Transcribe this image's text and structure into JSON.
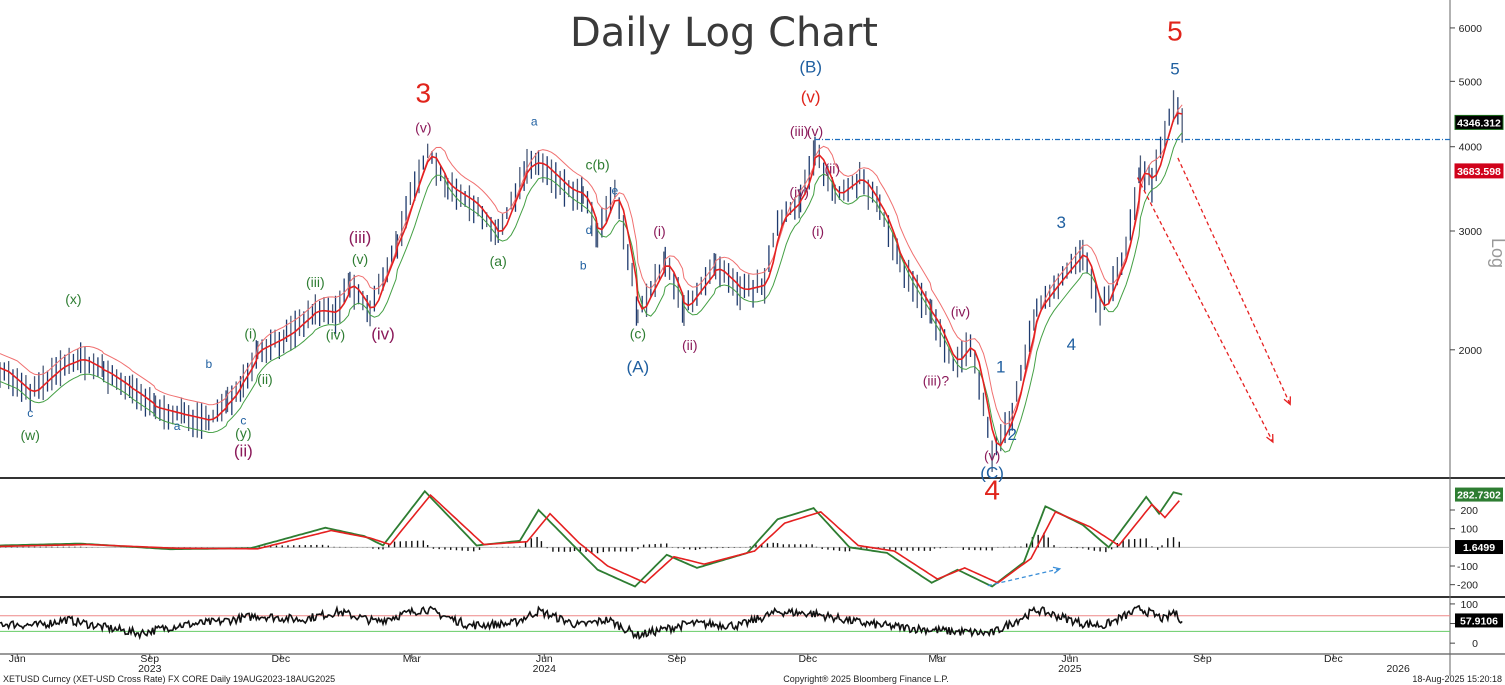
{
  "chart_data": {
    "type": "line",
    "title": "Daily Log Chart",
    "y_scale": "log",
    "y_axis_label": "Log",
    "ylim": [
      1300,
      6600
    ],
    "y_ticks": [
      "6000",
      "5000",
      "4000",
      "3000",
      "2000"
    ],
    "y_tick_values": [
      6000,
      5000,
      4000,
      3000,
      2000
    ],
    "x_axis": {
      "month_labels": [
        "Jun",
        "Sep",
        "Dec",
        "Mar",
        "Jun",
        "Sep",
        "Dec",
        "Mar",
        "Jun",
        "Sep",
        "Dec"
      ],
      "month_dates": [
        "2023-06-01",
        "2023-09-01",
        "2023-12-01",
        "2024-03-01",
        "2024-06-01",
        "2024-09-01",
        "2024-12-01",
        "2025-03-01",
        "2025-06-01",
        "2025-09-01",
        "2025-12-01"
      ],
      "year_labels": [
        "2023",
        "2024",
        "2025",
        "2026"
      ],
      "year_dates": [
        "2023-09-01",
        "2024-06-01",
        "2025-06-01",
        "2026-01-15"
      ],
      "range": [
        "2023-05-20",
        "2026-02-20"
      ]
    },
    "price_series": {
      "name": "XETUSD",
      "last_value": "4346.312",
      "points": [
        [
          "2023-05-20",
          1880
        ],
        [
          "2023-06-10",
          1720
        ],
        [
          "2023-07-01",
          1890
        ],
        [
          "2023-07-15",
          1940
        ],
        [
          "2023-07-31",
          1860
        ],
        [
          "2023-08-20",
          1740
        ],
        [
          "2023-09-05",
          1640
        ],
        [
          "2023-09-25",
          1600
        ],
        [
          "2023-10-12",
          1570
        ],
        [
          "2023-10-25",
          1670
        ],
        [
          "2023-11-05",
          1820
        ],
        [
          "2023-11-15",
          2000
        ],
        [
          "2023-12-05",
          2100
        ],
        [
          "2023-12-25",
          2290
        ],
        [
          "2024-01-08",
          2270
        ],
        [
          "2024-01-18",
          2510
        ],
        [
          "2024-02-01",
          2270
        ],
        [
          "2024-02-20",
          2900
        ],
        [
          "2024-03-12",
          3950
        ],
        [
          "2024-03-26",
          3490
        ],
        [
          "2024-04-13",
          3300
        ],
        [
          "2024-04-30",
          2950
        ],
        [
          "2024-05-20",
          3750
        ],
        [
          "2024-05-28",
          3800
        ],
        [
          "2024-06-18",
          3450
        ],
        [
          "2024-06-28",
          3400
        ],
        [
          "2024-07-08",
          2960
        ],
        [
          "2024-07-20",
          3450
        ],
        [
          "2024-08-05",
          2250
        ],
        [
          "2024-08-24",
          2700
        ],
        [
          "2024-09-06",
          2300
        ],
        [
          "2024-09-28",
          2650
        ],
        [
          "2024-10-15",
          2450
        ],
        [
          "2024-11-01",
          2500
        ],
        [
          "2024-11-10",
          3100
        ],
        [
          "2024-11-26",
          3350
        ],
        [
          "2024-12-06",
          3950
        ],
        [
          "2024-12-20",
          3380
        ],
        [
          "2025-01-06",
          3600
        ],
        [
          "2025-01-20",
          3250
        ],
        [
          "2025-02-03",
          2700
        ],
        [
          "2025-02-25",
          2250
        ],
        [
          "2025-03-12",
          1900
        ],
        [
          "2025-03-24",
          2050
        ],
        [
          "2025-04-08",
          1400
        ],
        [
          "2025-04-22",
          1600
        ],
        [
          "2025-05-09",
          2300
        ],
        [
          "2025-06-10",
          2800
        ],
        [
          "2025-06-22",
          2250
        ],
        [
          "2025-07-10",
          2800
        ],
        [
          "2025-07-20",
          3700
        ],
        [
          "2025-07-28",
          3550
        ],
        [
          "2025-08-12",
          4600
        ],
        [
          "2025-08-18",
          4346
        ]
      ]
    },
    "resistance_line": {
      "value": 4100,
      "from": "2024-12-06",
      "to": "2026-02-20",
      "color": "#1f6fbf"
    },
    "price_badges": [
      {
        "label": "4346.312",
        "value": 4346,
        "color": "#000000",
        "edge": "#1a6d1a"
      },
      {
        "label": "3683.598",
        "value": 3683,
        "color": "#d0021b",
        "edge": "#d0021b"
      }
    ],
    "projection_arrows": [
      {
        "from": [
          "2025-08-15",
          3850
        ],
        "to": [
          "2025-11-01",
          1660
        ]
      },
      {
        "from": [
          "2025-07-18",
          3600
        ],
        "to": [
          "2025-10-20",
          1460
        ]
      }
    ],
    "wave_labels": [
      {
        "text": "3",
        "date": "2024-03-09",
        "price": 4650,
        "color": "#e0241b",
        "size": "xl"
      },
      {
        "text": "(v)",
        "date": "2024-03-09",
        "price": 4200,
        "color": "#8b1a5a",
        "size": "m"
      },
      {
        "text": "(B)",
        "date": "2024-12-03",
        "price": 5150,
        "color": "#1f5fa0",
        "size": "l"
      },
      {
        "text": "(v)",
        "date": "2024-12-03",
        "price": 4650,
        "color": "#e0241b",
        "size": "l"
      },
      {
        "text": "(iii)",
        "date": "2024-11-25",
        "price": 4150,
        "color": "#8b1a5a",
        "size": "m"
      },
      {
        "text": "(v)",
        "date": "2024-12-06",
        "price": 4150,
        "color": "#8b1a5a",
        "size": "m"
      },
      {
        "text": "(ii)",
        "date": "2024-12-18",
        "price": 3650,
        "color": "#8b1a5a",
        "size": "m"
      },
      {
        "text": "(iv)",
        "date": "2024-11-25",
        "price": 3370,
        "color": "#8b1a5a",
        "size": "m"
      },
      {
        "text": "(i)",
        "date": "2024-12-08",
        "price": 2950,
        "color": "#8b1a5a",
        "size": "m"
      },
      {
        "text": "5",
        "date": "2025-08-13",
        "price": 5750,
        "color": "#e0241b",
        "size": "xl"
      },
      {
        "text": "5",
        "date": "2025-08-13",
        "price": 5120,
        "color": "#1f5fa0",
        "size": "l"
      },
      {
        "text": "a",
        "date": "2024-05-25",
        "price": 4300,
        "color": "#1f5fa0",
        "size": "s"
      },
      {
        "text": "c(b)",
        "date": "2024-07-08",
        "price": 3700,
        "color": "#2e7d32",
        "size": "m"
      },
      {
        "text": "e",
        "date": "2024-07-20",
        "price": 3400,
        "color": "#1f5fa0",
        "size": "s"
      },
      {
        "text": "d",
        "date": "2024-07-02",
        "price": 2970,
        "color": "#1f5fa0",
        "size": "s"
      },
      {
        "text": "b",
        "date": "2024-06-28",
        "price": 2630,
        "color": "#1f5fa0",
        "size": "s"
      },
      {
        "text": "(i)",
        "date": "2024-08-20",
        "price": 2950,
        "color": "#8b1a5a",
        "size": "m"
      },
      {
        "text": "(a)",
        "date": "2024-04-30",
        "price": 2660,
        "color": "#2e7d32",
        "size": "m"
      },
      {
        "text": "(c)",
        "date": "2024-08-05",
        "price": 2080,
        "color": "#2e7d32",
        "size": "m"
      },
      {
        "text": "(A)",
        "date": "2024-08-05",
        "price": 1850,
        "color": "#1f5fa0",
        "size": "l"
      },
      {
        "text": "(ii)",
        "date": "2024-09-10",
        "price": 2000,
        "color": "#8b1a5a",
        "size": "m"
      },
      {
        "text": "(iii)",
        "date": "2024-01-25",
        "price": 2880,
        "color": "#8b1a5a",
        "size": "l"
      },
      {
        "text": "(v)",
        "date": "2024-01-25",
        "price": 2680,
        "color": "#2e7d32",
        "size": "m"
      },
      {
        "text": "(iii)",
        "date": "2023-12-25",
        "price": 2480,
        "color": "#2e7d32",
        "size": "m"
      },
      {
        "text": "(iv)",
        "date": "2024-01-08",
        "price": 2070,
        "color": "#2e7d32",
        "size": "m"
      },
      {
        "text": "(iv)",
        "date": "2024-02-10",
        "price": 2070,
        "color": "#8b1a5a",
        "size": "l"
      },
      {
        "text": "(i)",
        "date": "2023-11-10",
        "price": 2080,
        "color": "#2e7d32",
        "size": "m"
      },
      {
        "text": "(ii)",
        "date": "2023-11-20",
        "price": 1780,
        "color": "#2e7d32",
        "size": "m"
      },
      {
        "text": "b",
        "date": "2023-10-12",
        "price": 1880,
        "color": "#1f5fa0",
        "size": "s"
      },
      {
        "text": "c",
        "date": "2023-11-05",
        "price": 1550,
        "color": "#1f5fa0",
        "size": "s"
      },
      {
        "text": "(y)",
        "date": "2023-11-05",
        "price": 1480,
        "color": "#2e7d32",
        "size": "m"
      },
      {
        "text": "(ii)",
        "date": "2023-11-05",
        "price": 1390,
        "color": "#8b1a5a",
        "size": "l"
      },
      {
        "text": "a",
        "date": "2023-09-20",
        "price": 1520,
        "color": "#1f5fa0",
        "size": "s"
      },
      {
        "text": "(x)",
        "date": "2023-07-10",
        "price": 2340,
        "color": "#2e7d32",
        "size": "m"
      },
      {
        "text": "c",
        "date": "2023-06-10",
        "price": 1590,
        "color": "#1f5fa0",
        "size": "s"
      },
      {
        "text": "(w)",
        "date": "2023-06-10",
        "price": 1470,
        "color": "#2e7d32",
        "size": "m"
      },
      {
        "text": "(iv)",
        "date": "2025-03-17",
        "price": 2240,
        "color": "#8b1a5a",
        "size": "m"
      },
      {
        "text": "(iii)?",
        "date": "2025-02-28",
        "price": 1770,
        "color": "#8b1a5a",
        "size": "m"
      },
      {
        "text": "1",
        "date": "2025-04-14",
        "price": 1850,
        "color": "#1f5fa0",
        "size": "l"
      },
      {
        "text": "2",
        "date": "2025-04-22",
        "price": 1470,
        "color": "#1f5fa0",
        "size": "l"
      },
      {
        "text": "(v)",
        "date": "2025-04-08",
        "price": 1370,
        "color": "#8b1a5a",
        "size": "m"
      },
      {
        "text": "(C)",
        "date": "2025-04-08",
        "price": 1290,
        "color": "#1f5fa0",
        "size": "l"
      },
      {
        "text": "4",
        "date": "2025-04-08",
        "price": 1200,
        "color": "#e0241b",
        "size": "xl"
      },
      {
        "text": "3",
        "date": "2025-05-26",
        "price": 3030,
        "color": "#1f5fa0",
        "size": "l"
      },
      {
        "text": "4",
        "date": "2025-06-02",
        "price": 2000,
        "color": "#1f5fa0",
        "size": "l"
      }
    ],
    "oscillator_panel": {
      "y_ticks": [
        "200",
        "100",
        "-100",
        "-200"
      ],
      "y_tick_values": [
        200,
        100,
        -100,
        -200
      ],
      "ylim": [
        -250,
        350
      ],
      "badges": [
        {
          "label": "282.7302",
          "value": 282.7,
          "color": "#2e7d32"
        },
        {
          "label": "1.6499",
          "value": 1.65,
          "color": "#000000"
        }
      ],
      "green_points": [
        [
          "2023-05-20",
          10
        ],
        [
          "2023-07-15",
          20
        ],
        [
          "2023-09-15",
          -10
        ],
        [
          "2023-11-10",
          -5
        ],
        [
          "2024-01-01",
          105
        ],
        [
          "2024-01-28",
          60
        ],
        [
          "2024-02-10",
          10
        ],
        [
          "2024-03-10",
          300
        ],
        [
          "2024-04-15",
          10
        ],
        [
          "2024-05-15",
          35
        ],
        [
          "2024-05-28",
          200
        ],
        [
          "2024-06-20",
          20
        ],
        [
          "2024-07-08",
          -120
        ],
        [
          "2024-08-03",
          -210
        ],
        [
          "2024-08-25",
          -40
        ],
        [
          "2024-09-15",
          -110
        ],
        [
          "2024-10-20",
          -30
        ],
        [
          "2024-11-10",
          150
        ],
        [
          "2024-12-05",
          210
        ],
        [
          "2024-12-30",
          0
        ],
        [
          "2025-01-25",
          -30
        ],
        [
          "2025-02-25",
          -190
        ],
        [
          "2025-03-15",
          -120
        ],
        [
          "2025-04-08",
          -210
        ],
        [
          "2025-04-30",
          -80
        ],
        [
          "2025-05-15",
          220
        ],
        [
          "2025-06-10",
          120
        ],
        [
          "2025-06-28",
          0
        ],
        [
          "2025-07-24",
          270
        ],
        [
          "2025-08-02",
          180
        ],
        [
          "2025-08-12",
          295
        ],
        [
          "2025-08-18",
          282.7
        ]
      ],
      "red_points": [
        [
          "2023-05-20",
          5
        ],
        [
          "2023-07-20",
          15
        ],
        [
          "2023-09-20",
          -5
        ],
        [
          "2023-11-15",
          -8
        ],
        [
          "2024-01-05",
          90
        ],
        [
          "2024-02-01",
          50
        ],
        [
          "2024-02-15",
          15
        ],
        [
          "2024-03-14",
          280
        ],
        [
          "2024-04-20",
          15
        ],
        [
          "2024-05-20",
          30
        ],
        [
          "2024-06-05",
          180
        ],
        [
          "2024-06-25",
          25
        ],
        [
          "2024-07-15",
          -100
        ],
        [
          "2024-08-10",
          -190
        ],
        [
          "2024-08-30",
          -50
        ],
        [
          "2024-09-20",
          -90
        ],
        [
          "2024-10-25",
          -20
        ],
        [
          "2024-11-15",
          130
        ],
        [
          "2024-12-10",
          190
        ],
        [
          "2025-01-05",
          10
        ],
        [
          "2025-01-30",
          -20
        ],
        [
          "2025-03-01",
          -170
        ],
        [
          "2025-03-20",
          -110
        ],
        [
          "2025-04-12",
          -190
        ],
        [
          "2025-05-05",
          -60
        ],
        [
          "2025-05-22",
          190
        ],
        [
          "2025-06-15",
          110
        ],
        [
          "2025-07-05",
          10
        ],
        [
          "2025-07-28",
          230
        ],
        [
          "2025-08-06",
          160
        ],
        [
          "2025-08-16",
          250
        ]
      ],
      "trend_arrow": {
        "from": [
          "2025-04-05",
          -205
        ],
        "to": [
          "2025-05-25",
          -115
        ],
        "color": "#3c8fd8"
      }
    },
    "rsi_panel": {
      "y_ticks": [
        "100",
        "50",
        "0"
      ],
      "y_tick_values": [
        100,
        50,
        0
      ],
      "ylim": [
        -20,
        110
      ],
      "overbought": 70,
      "oversold": 30,
      "badge": {
        "label": "57.9106",
        "value": 57.9,
        "color": "#000000"
      },
      "points": [
        [
          "2023-05-20",
          50
        ],
        [
          "2023-06-15",
          45
        ],
        [
          "2023-07-05",
          60
        ],
        [
          "2023-08-01",
          40
        ],
        [
          "2023-08-25",
          25
        ],
        [
          "2023-09-20",
          45
        ],
        [
          "2023-10-20",
          55
        ],
        [
          "2023-11-15",
          70
        ],
        [
          "2023-12-15",
          60
        ],
        [
          "2024-01-10",
          80
        ],
        [
          "2024-02-05",
          55
        ],
        [
          "2024-03-10",
          88
        ],
        [
          "2024-04-10",
          45
        ],
        [
          "2024-05-10",
          50
        ],
        [
          "2024-05-28",
          82
        ],
        [
          "2024-06-25",
          45
        ],
        [
          "2024-07-15",
          60
        ],
        [
          "2024-08-05",
          20
        ],
        [
          "2024-09-10",
          50
        ],
        [
          "2024-10-15",
          45
        ],
        [
          "2024-11-10",
          80
        ],
        [
          "2024-12-05",
          75
        ],
        [
          "2025-01-10",
          50
        ],
        [
          "2025-02-05",
          40
        ],
        [
          "2025-03-10",
          30
        ],
        [
          "2025-04-08",
          25
        ],
        [
          "2025-05-09",
          85
        ],
        [
          "2025-06-10",
          50
        ],
        [
          "2025-06-25",
          45
        ],
        [
          "2025-07-20",
          88
        ],
        [
          "2025-08-06",
          60
        ],
        [
          "2025-08-12",
          80
        ],
        [
          "2025-08-18",
          57.9
        ]
      ]
    },
    "footer": {
      "security": "XETUSD Curncy (XET-USD Cross Rate) FX CORE  Daily 19AUG2023-18AUG2025",
      "copyright": "Copyright® 2025 Bloomberg Finance L.P.",
      "timestamp": "18-Aug-2025 15:20:18"
    }
  }
}
